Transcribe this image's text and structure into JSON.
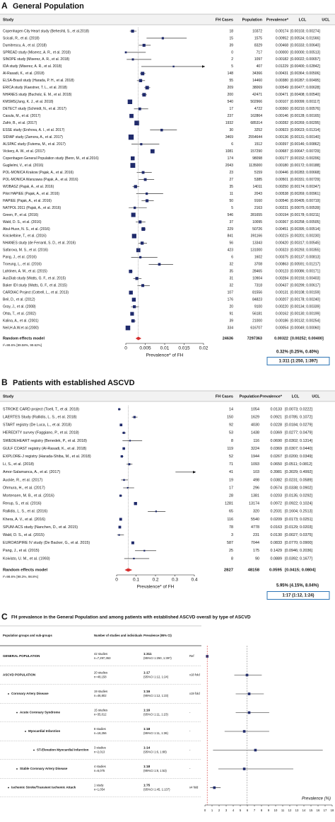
{
  "chart_data": [
    {
      "type": "forest",
      "panel": "A",
      "title": "General Population",
      "columns": [
        "Study",
        "FH Cases",
        "Population",
        "Prevalence*",
        "LCL",
        "UCL"
      ],
      "categories": [
        "Copenhagen City Heart study (Beheshti, S., et al.2018)",
        "Scicali, R., et al. (2018)",
        "Dumitrescu, A., et al. (2018)",
        "SPREAD study (Miserez, A. R., et al. 2018)",
        "SINOPE study (Miserez, A. R., et al. 2018)",
        "IDA study (Miserez, A. R., et al. 2018)",
        "Al-Rasadi, K., et al. (2018)",
        "ELSA-Brasil study (Harada, P. H., et al. 2018)",
        "ERICA study (Kaestner, T. L., et al. 2018)",
        "NHANES study (Bucholz, E. M., et al. 2018)",
        "KMSMS(Jung, K. J., et al. 2018)",
        "DETECT study (Schmidt, N., et al. 2017)",
        "Casula, M., et al. (2017)",
        "Zafrir, B., et al. (2017)",
        "ESSE study (Ershova, A. I., et al. 2017)",
        "SIDIAP study (Zamora, A., et al. 2017)",
        "ALSPAC study (Futema, M., et al. 2017)",
        "Vickery, A. W., et al. (2017)",
        "Copenhagen General Population study (Benn, M., et al.2016)",
        "Guglielmi, V., et al. (2016)",
        "POL-MONICA Krakow (Pajak, A., et al. 2016)",
        "POL-MONICA Warszawa (Pajak, A., et al. 2016)",
        "WOBASZ (Pajak, A., et al. 2016)",
        "Pilot HAPIEE (Pajak, A., et al. 2016)",
        "HAPIEE (Pajak, A., et al. 2016)",
        "NATPOL 2011 (Pajak, A., et al. 2016)",
        "Green, P., et al. (2016)",
        "Wald, D. S., et al. (2016)",
        "Abul-Husn, N. S., et al. (2016)",
        "Knickelbine, T., et al. (2016)",
        "NHANES study (de Ferranti, S. D., et al. 2016)",
        "Safarova, M. S., et al. (2016)",
        "Pang, J., et al. (2016)",
        "Troeung, L., et al. (2016)",
        "Lahtinen, A. M., et al. (2015)",
        "AusDiab study (Watts, G. F., et al. 2015)",
        "Baker IDI study (Watts, G. F., et al. 2015)",
        "CARDIAC Project (Cottrell, L., et al. 2013)",
        "Beil, D., et al. (2012)",
        "Gray, J., et al. (2008)",
        "Ohta, T., et al. (2002)",
        "Kalina, A., et al. (2001)",
        "Neil,H.A.W.et al.(2000)"
      ],
      "fh_cases": [
        18,
        15,
        39,
        0,
        2,
        5,
        148,
        55,
        209,
        200,
        540,
        17,
        237,
        1932,
        30,
        3469,
        6,
        1081,
        174,
        2043,
        23,
        27,
        35,
        11,
        50,
        5,
        546,
        37,
        229,
        841,
        56,
        423,
        6,
        32,
        35,
        31,
        32,
        107,
        176,
        20,
        91,
        39,
        334
      ],
      "population": [
        10372,
        1575,
        8329,
        717,
        1097,
        407,
        34366,
        14460,
        38069,
        42471,
        502966,
        4722,
        162864,
        685314,
        3252,
        2554644,
        1512,
        157290,
        98098,
        1135000,
        5159,
        5385,
        14011,
        2043,
        9160,
        2163,
        281655,
        10095,
        50726,
        391166,
        13343,
        131000,
        1602,
        3708,
        28465,
        10904,
        7318,
        81556,
        84823,
        9100,
        56181,
        21000,
        616707
      ],
      "values": [
        0.00174,
        0.00952,
        0.00468,
        0,
        0.00182,
        0.01229,
        0.00431,
        0.0038,
        0.00549,
        0.00471,
        0.00107,
        0.0036,
        0.00146,
        0.00282,
        0.00923,
        0.00136,
        0.00397,
        0.00687,
        0.00177,
        0.0018,
        0.00446,
        0.00501,
        0.0025,
        0.00538,
        0.00546,
        0.00231,
        0.00194,
        0.00367,
        0.00451,
        0.00215,
        0.0042,
        0.00323,
        0.00375,
        0.00863,
        0.00123,
        0.00284,
        0.00437,
        0.00131,
        0.00207,
        0.0022,
        0.00162,
        0.00186,
        0.00054
      ],
      "value_labels": [
        "0.00174",
        "0.00952",
        "0.00468",
        "0.00000",
        "0.00182",
        "0.01229",
        "0.00431",
        "0.00380",
        "0.00549",
        "0.00471",
        "0.00107",
        "0.00360",
        "0.00146",
        "0.00282",
        "0.00923",
        "0.00136",
        "0.00397",
        "0.00687",
        "0.00177",
        "0.00180",
        "0.00446",
        "0.00501",
        "0.00250",
        "0.00538",
        "0.00546",
        "0.00231",
        "0.00194",
        "0.00367",
        "0.00451",
        "0.00215",
        "0.00420",
        "0.00323",
        "0.00375",
        "0.00863",
        "0.00123",
        "0.00284",
        "0.00437",
        "0.00131",
        "0.00207",
        "0.00220",
        "0.00162",
        "0.00186",
        "0.00054"
      ],
      "lower": [
        0.00103,
        0.00534,
        0.00333,
        0,
        0.00022,
        0.004,
        0.00364,
        0.00287,
        0.00477,
        0.00408,
        0.00099,
        0.0021,
        0.00128,
        0.00269,
        0.00623,
        0.00131,
        0.00146,
        0.00647,
        0.00152,
        0.00172,
        0.00283,
        0.00331,
        0.00174,
        0.00269,
        0.00405,
        0.00075,
        0.00178,
        0.00258,
        0.00395,
        0.00201,
        0.00317,
        0.00293,
        0.00137,
        0.00591,
        0.00086,
        0.00193,
        0.00299,
        0.00108,
        0.00178,
        0.00134,
        0.0013,
        0.00132,
        0.00049
      ],
      "upper": [
        0.00274,
        0.01566,
        0.0064,
        0.00513,
        0.00657,
        0.02842,
        0.00506,
        0.00495,
        0.00628,
        0.0054,
        0.00117,
        0.00576,
        0.00165,
        0.00295,
        0.01314,
        0.0014,
        0.00862,
        0.00729,
        0.00206,
        0.00188,
        0.00668,
        0.00729,
        0.00347,
        0.00961,
        0.00719,
        0.00539,
        0.00211,
        0.00505,
        0.00514,
        0.0023,
        0.00545,
        0.00355,
        0.00813,
        0.01217,
        0.00171,
        0.00403,
        0.00617,
        0.00159,
        0.0024,
        0.00339,
        0.00199,
        0.00254,
        0.0006
      ],
      "ci_labels": [
        "[0.00103; 0.00274]",
        "[0.00534; 0.01566]",
        "[0.00333; 0.00640]",
        "[0.00000; 0.00513]",
        "[0.00022; 0.00657]",
        "[0.00400; 0.02842]",
        "[0.00364; 0.00506]",
        "[0.00287; 0.00495]",
        "[0.00477; 0.00628]",
        "[0.00408; 0.00540]",
        "[0.00099; 0.00117]",
        "[0.00210; 0.00576]",
        "[0.00128; 0.00165]",
        "[0.00269; 0.00295]",
        "[0.00623; 0.01314]",
        "[0.00131; 0.00140]",
        "[0.00146; 0.00862]",
        "[0.00647; 0.00729]",
        "[0.00152; 0.00206]",
        "[0.00172; 0.00188]",
        "[0.00283; 0.00668]",
        "[0.00331; 0.00729]",
        "[0.00174; 0.00347]",
        "[0.00269; 0.00961]",
        "[0.00405; 0.00719]",
        "[0.00075; 0.00539]",
        "[0.00178; 0.00211]",
        "[0.00258; 0.00505]",
        "[0.00395; 0.00514]",
        "[0.00201; 0.00230]",
        "[0.00317; 0.00545]",
        "[0.00293; 0.00355]",
        "[0.00137; 0.00813]",
        "[0.00591; 0.01217]",
        "[0.00086; 0.00171]",
        "[0.00193; 0.00403]",
        "[0.00299; 0.00617]",
        "[0.00108; 0.00159]",
        "[0.00178; 0.00240]",
        "[0.00134; 0.00339]",
        "[0.00130; 0.00199]",
        "[0.00132; 0.00254]",
        "[0.00049; 0.00060]"
      ],
      "summary": {
        "label": "Random effects model",
        "fh_cases": 24636,
        "population": 7297363,
        "value": 0.00322,
        "value_label": "0.00322",
        "lower": 0.00252,
        "upper": 0.004,
        "ci_label": "[0.00252; 0.00400]"
      },
      "heterogeneity": "I²=99.6% [99.58%, 99.62%]",
      "pct_text": "0.32% (0.25%, 0.40%)",
      "ratio_text": "1:311 (1:250, 1:397)",
      "xlabel": "Prevalence* of FH",
      "xlim": [
        0,
        0.02
      ],
      "xticks": [
        0,
        0.005,
        0.01,
        0.015,
        0.02
      ],
      "color": "#1f2a6b",
      "summary_color": "#d62f2f"
    },
    {
      "type": "forest",
      "panel": "B",
      "title": "Patients with established ASCVD",
      "columns": [
        "Study",
        "FH Cases",
        "Population",
        "Prevalence*",
        "LCL",
        "UCL"
      ],
      "categories": [
        "STROKE CARD project (Toell, T., et al. 2018)",
        "LAERTES Study (Rallidis, L. S., et al. 2018)",
        "START registry (De Luca, L., et al. 2018)",
        "HEREDITY survey (Faggiano, P., et al. 2018)",
        "SWEDEHEART registry (Benedek, P., et al. 2018)",
        "GULF COAST registry (Al-Rasadi, K., et al. 2018)",
        "EXPLORE-J registry (Harada-Shiba, M., et al. 2018)",
        "Li, S., et al. (2018)",
        "Amor-Salamanca, A., et al. (2017)",
        "Auckle, R., et al. (2017)",
        "Ohmura, H., et al. (2017)",
        "Mortensen, M. B., et al. (2016)",
        "Rerup, S., et al. (2016)",
        "Rallidis, L. S., et al. (2016)",
        "Khera, A. V., et al. (2016)",
        "SPUM-ACS study (Nanchen, D., et al. 2015)",
        "Wald, D. S., et al. (2015)",
        "EUROASPIRE IV study (De Backer, G., et al. 2015)",
        "Pang, J., et al. (2015)",
        "Koivisto, U. M., et al. (1993)"
      ],
      "fh_cases": [
        14,
        150,
        92,
        53,
        8,
        119,
        52,
        71,
        41,
        19,
        17,
        28,
        1281,
        65,
        116,
        78,
        3,
        587,
        25,
        8
      ],
      "population": [
        1054,
        1629,
        4030,
        1438,
        116,
        3224,
        1944,
        1093,
        103,
        498,
        296,
        1381,
        13174,
        320,
        5540,
        4778,
        231,
        7044,
        175,
        90
      ],
      "values": [
        0.0133,
        0.0921,
        0.0228,
        0.0369,
        0.069,
        0.0369,
        0.0267,
        0.065,
        0.3981,
        0.0382,
        0.0574,
        0.0203,
        0.0972,
        0.2031,
        0.0209,
        0.0163,
        0.013,
        0.0833,
        0.1429,
        0.0889
      ],
      "value_labels": [
        "0.0133",
        "0.0921",
        "0.0228",
        "0.0369",
        "0.0690",
        "0.0369",
        "0.0267",
        "0.0650",
        "0.3981",
        "0.0382",
        "0.0574",
        "0.0203",
        "0.0972",
        "0.2031",
        "0.0209",
        "0.0163",
        "0.0130",
        "0.0833",
        "0.1429",
        "0.0889"
      ],
      "lower": [
        0.0073,
        0.0785,
        0.0184,
        0.0277,
        0.0302,
        0.0307,
        0.02,
        0.0511,
        0.3029,
        0.0231,
        0.0338,
        0.0135,
        0.0922,
        0.1604,
        0.0173,
        0.0129,
        0.0027,
        0.077,
        0.0946,
        0.0392
      ],
      "upper": [
        0.0222,
        0.1072,
        0.0279,
        0.0479,
        0.1314,
        0.044,
        0.0349,
        0.0812,
        0.4992,
        0.0589,
        0.0902,
        0.0292,
        0.1024,
        0.2513,
        0.0251,
        0.0203,
        0.0375,
        0.09,
        0.2036,
        0.1677
      ],
      "ci_labels": [
        "[0.0073; 0.0222]",
        "[0.0785; 0.1072]",
        "[0.0184; 0.0279]",
        "[0.0277; 0.0479]",
        "[0.0302; 0.1314]",
        "[0.0307; 0.0440]",
        "[0.0200; 0.0349]",
        "[0.0511; 0.0812]",
        "[0.3029; 0.4992]",
        "[0.0231; 0.0589]",
        "[0.0338; 0.0902]",
        "[0.0135; 0.0292]",
        "[0.0922; 0.1024]",
        "[0.1604; 0.2513]",
        "[0.0173; 0.0251]",
        "[0.0129; 0.0203]",
        "[0.0027; 0.0375]",
        "[0.0770; 0.0900]",
        "[0.0946; 0.2036]",
        "[0.0392; 0.1677]"
      ],
      "summary": {
        "label": "Random effects model",
        "fh_cases": 2827,
        "population": 48158,
        "value": 0.0595,
        "value_label": "0.0595",
        "lower": 0.0415,
        "upper": 0.0804,
        "ci_label": "[0.0415; 0.0804]"
      },
      "heterogeneity": "I²=98.6% [98.3%, 98.8%]",
      "pct_text": "5.95% (4.15%, 8.04%)",
      "ratio_text": "1:17 (1:12, 1:24)",
      "xlabel": "Prevalence* of FH",
      "xlim": [
        0,
        0.4
      ],
      "xticks": [
        0,
        0.1,
        0.2,
        0.3,
        0.4
      ],
      "color": "#1f2a6b",
      "summary_color": "#d62f2f"
    },
    {
      "type": "forest_summary",
      "panel": "C",
      "title": "FH prevalence in the General Population and among patients with established ASCVD overall by type of ASCVD",
      "columns": [
        "Population groups and sub-groups",
        "Number of studies and individuals",
        "Prevalence (95% CI)"
      ],
      "categories": [
        "GENERAL POPULATION",
        "ASCVD POPULATION",
        "Coronary Artery Disease",
        "Acute Coronary Syndrome",
        "Myocardial Infarction",
        "ST-Elevation Myocardial Infarction",
        "Stable Coronary Artery Disease",
        "Ischemic Stroke/Transient Ischemic Attack"
      ],
      "studies": [
        "42 studies",
        "20 studies",
        "19 studies",
        "15 studies",
        "8 studies",
        "3 studies",
        "4 studies",
        "1 study"
      ],
      "individuals": [
        "n=7,297,363",
        "n=48,158",
        "n=46,802",
        "n=35,012",
        "n=18,256",
        "n=2,013",
        "n=6,075",
        "n=1,054"
      ],
      "ratios": [
        "1:311",
        "1:17",
        "1:16",
        "1:16",
        "1:18",
        "1:14",
        "1:18",
        "1:75"
      ],
      "ratio_ci": [
        "(95%CI 1:250, 1:397)",
        "(95%CI 1:12, 1:24)",
        "(95%CI 1:12, 1:23)",
        "(95%CI 1:11, 1:23)",
        "(95%CI 1:11, 1:36)",
        "(95%CI 1:6, 1:88)",
        "(95%CI 1:8, 1:53)",
        "(95%CI 1:45, 1:137)"
      ],
      "fold": [
        "Ref",
        "x18 fold",
        "x19 fold",
        "-",
        "-",
        "-",
        "-",
        "x4 fold"
      ],
      "values": [
        0.32,
        5.95,
        6.25,
        6.25,
        5.56,
        7.14,
        5.56,
        1.33
      ],
      "lower": [
        0.25,
        4.15,
        4.35,
        4.35,
        2.78,
        1.14,
        1.89,
        0.73
      ],
      "upper": [
        0.4,
        8.04,
        8.33,
        9.09,
        9.09,
        16.67,
        12.5,
        2.22
      ],
      "xlabel": "Prevalence (%)",
      "xlim": [
        0,
        18
      ],
      "xticks": [
        0,
        1,
        2,
        3,
        4,
        5,
        6,
        7,
        8,
        9,
        10,
        11,
        12,
        13,
        14,
        15,
        16,
        17,
        18
      ],
      "color": "#1f2a6b",
      "reference_color": "#d62f2f"
    }
  ]
}
